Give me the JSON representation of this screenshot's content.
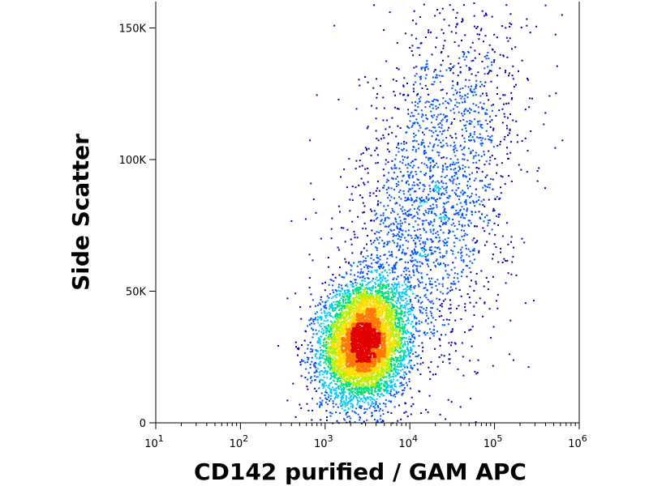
{
  "chart_data": {
    "type": "scatter",
    "style": "density-dot-plot",
    "xlabel": "CD142 purified / GAM APC",
    "ylabel": "Side Scatter",
    "x_scale": "log",
    "xlim": [
      10,
      1000000
    ],
    "ylim": [
      0,
      160000
    ],
    "x_ticks": [
      {
        "value": 10,
        "base": "10",
        "exp": "1"
      },
      {
        "value": 100,
        "base": "10",
        "exp": "2"
      },
      {
        "value": 1000,
        "base": "10",
        "exp": "3"
      },
      {
        "value": 10000,
        "base": "10",
        "exp": "4"
      },
      {
        "value": 100000,
        "base": "10",
        "exp": "5"
      },
      {
        "value": 1000000,
        "base": "10",
        "exp": "6"
      }
    ],
    "y_ticks": [
      {
        "value": 0,
        "label": "0"
      },
      {
        "value": 50000,
        "label": "50K"
      },
      {
        "value": 100000,
        "label": "100K"
      },
      {
        "value": 150000,
        "label": "150K"
      }
    ],
    "grid": false,
    "legend": "none",
    "populations": [
      {
        "x_center": 2800,
        "y_center": 31000,
        "spread_log_x": 0.25,
        "spread_y": 11000,
        "count": 6500
      },
      {
        "x_center": 15000,
        "y_center": 75000,
        "spread_log_x": 0.5,
        "spread_y": 30000,
        "count": 1900
      },
      {
        "x_center": 40000,
        "y_center": 120000,
        "spread_log_x": 0.4,
        "spread_y": 25000,
        "count": 500
      }
    ],
    "density_colors": [
      "#0000b4",
      "#0050ff",
      "#00c8ff",
      "#00e07a",
      "#b4f000",
      "#ffdc00",
      "#ff7800",
      "#e00000"
    ]
  }
}
